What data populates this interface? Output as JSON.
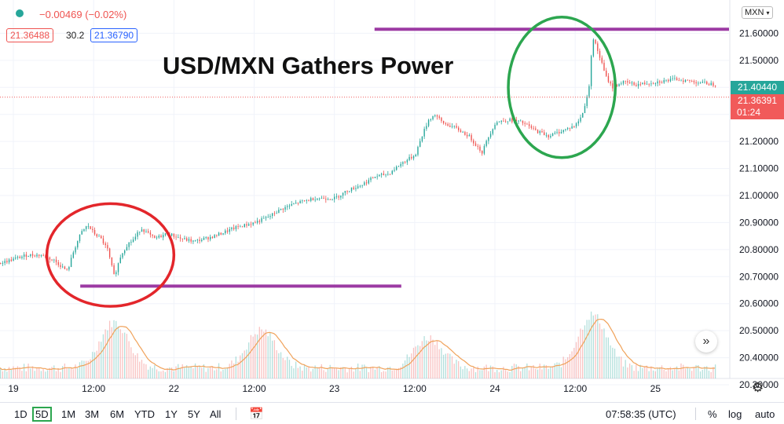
{
  "header": {
    "change": "−0.00469 (−0.02%)",
    "bid": "21.36488",
    "spread": "30.2",
    "ask": "21.36790",
    "currency": "MXN"
  },
  "annotation": {
    "title": "USD/MXN Gathers Power"
  },
  "price_labels": {
    "last": "21.40440",
    "current": "21.36391",
    "countdown": "01:24"
  },
  "toolbar": {
    "timeframes": [
      "1D",
      "5D",
      "1M",
      "3M",
      "6M",
      "YTD",
      "1Y",
      "5Y",
      "All"
    ],
    "active_timeframe": "5D",
    "clock": "07:58:35 (UTC)",
    "percent": "%",
    "log": "log",
    "auto": "auto"
  },
  "colors": {
    "up": "#26a69a",
    "down": "#ef5350",
    "trendline": "#9c3aa3",
    "red_circle": "#e3262b",
    "green_circle": "#2ca64f",
    "volume_ma": "#f0a25a",
    "current_price": "#f15a5a",
    "last_price": "#26a69a"
  },
  "chart_data": {
    "type": "candlestick",
    "ylim": [
      20.3,
      21.7
    ],
    "y_ticks": [
      "21.60000",
      "21.50000",
      "21.40000",
      "21.30000",
      "21.20000",
      "21.10000",
      "21.00000",
      "20.90000",
      "20.80000",
      "20.70000",
      "20.60000",
      "20.50000",
      "20.40000",
      "20.30000"
    ],
    "y_tick_values": [
      21.6,
      21.5,
      21.4,
      21.3,
      21.2,
      21.1,
      21.0,
      20.9,
      20.8,
      20.7,
      20.6,
      20.5,
      20.4,
      20.3
    ],
    "x_ticks": [
      "19",
      "12:00",
      "22",
      "12:00",
      "23",
      "12:00",
      "24",
      "12:00",
      "25"
    ],
    "x_tick_hours": [
      0,
      12,
      24,
      36,
      48,
      60,
      72,
      84,
      96
    ],
    "x_range_hours": [
      -2,
      107
    ],
    "price_path": [
      [
        -2,
        20.75
      ],
      [
        2,
        20.78
      ],
      [
        4,
        20.78
      ],
      [
        6,
        20.76
      ],
      [
        8,
        20.72
      ],
      [
        9,
        20.8
      ],
      [
        10,
        20.86
      ],
      [
        11,
        20.89
      ],
      [
        12,
        20.86
      ],
      [
        13,
        20.84
      ],
      [
        14,
        20.8
      ],
      [
        15,
        20.7
      ],
      [
        16,
        20.78
      ],
      [
        17,
        20.82
      ],
      [
        18,
        20.84
      ],
      [
        19,
        20.88
      ],
      [
        20,
        20.86
      ],
      [
        21,
        20.84
      ],
      [
        23,
        20.86
      ],
      [
        25,
        20.84
      ],
      [
        27,
        20.83
      ],
      [
        30,
        20.85
      ],
      [
        33,
        20.88
      ],
      [
        36,
        20.9
      ],
      [
        38,
        20.92
      ],
      [
        40,
        20.95
      ],
      [
        42,
        20.97
      ],
      [
        45,
        20.99
      ],
      [
        48,
        20.99
      ],
      [
        50,
        21.02
      ],
      [
        52,
        21.04
      ],
      [
        54,
        21.07
      ],
      [
        56,
        21.08
      ],
      [
        58,
        21.12
      ],
      [
        60,
        21.15
      ],
      [
        61,
        21.22
      ],
      [
        62,
        21.28
      ],
      [
        63,
        21.3
      ],
      [
        64,
        21.27
      ],
      [
        66,
        21.25
      ],
      [
        68,
        21.22
      ],
      [
        69,
        21.19
      ],
      [
        70,
        21.16
      ],
      [
        71,
        21.22
      ],
      [
        72,
        21.27
      ],
      [
        74,
        21.28
      ],
      [
        76,
        21.27
      ],
      [
        78,
        21.24
      ],
      [
        80,
        21.22
      ],
      [
        82,
        21.24
      ],
      [
        84,
        21.26
      ],
      [
        85,
        21.3
      ],
      [
        86,
        21.4
      ],
      [
        86.5,
        21.59
      ],
      [
        87.5,
        21.52
      ],
      [
        88.5,
        21.44
      ],
      [
        89.5,
        21.4
      ],
      [
        91,
        21.42
      ],
      [
        93,
        21.41
      ],
      [
        96,
        21.42
      ],
      [
        99,
        21.43
      ],
      [
        102,
        21.42
      ],
      [
        105,
        21.41
      ]
    ],
    "volume_peaks": [
      [
        15,
        0.6
      ],
      [
        37,
        0.5
      ],
      [
        62,
        0.4
      ],
      [
        86.5,
        0.7
      ]
    ],
    "trendlines": [
      {
        "from": [
          54,
          21.615
        ],
        "to": [
          107,
          21.615
        ]
      },
      {
        "from": [
          10,
          20.665
        ],
        "to": [
          58,
          20.665
        ]
      }
    ],
    "ellipses": [
      {
        "center": [
          14.5,
          20.78
        ],
        "rx_hours": 9.5,
        "ry_price": 0.19,
        "color_key": "red_circle"
      },
      {
        "center": [
          82,
          21.4
        ],
        "rx_hours": 8,
        "ry_price": 0.26,
        "color_key": "green_circle"
      }
    ],
    "current_price_value": 21.36391,
    "last_price_value": 21.4044
  }
}
